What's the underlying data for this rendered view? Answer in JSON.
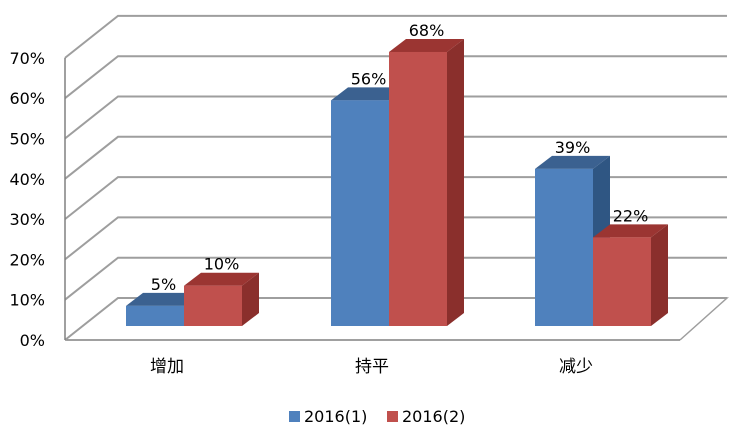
{
  "chart_data": {
    "type": "bar",
    "categories": [
      "增加",
      "持平",
      "减少"
    ],
    "series": [
      {
        "name": "2016(1)",
        "values": [
          5,
          56,
          39
        ],
        "labels": [
          "5%",
          "56%",
          "39%"
        ]
      },
      {
        "name": "2016(2)",
        "values": [
          10,
          68,
          22
        ],
        "labels": [
          "10%",
          "68%",
          "22%"
        ]
      }
    ],
    "ylim": [
      0,
      70
    ],
    "ytick_values": [
      0,
      10,
      20,
      30,
      40,
      50,
      60,
      70
    ],
    "ytick_labels": [
      "0%",
      "10%",
      "20%",
      "30%",
      "40%",
      "50%",
      "60%",
      "70%"
    ],
    "title": "",
    "xlabel": "",
    "ylabel": "",
    "grid": true,
    "style": "3d-clustered-column",
    "legend_position": "bottom"
  },
  "colors": {
    "series": [
      {
        "front": "#4f81bd",
        "top": "#3b6190",
        "side": "#2f5683"
      },
      {
        "front": "#c0504d",
        "top": "#9b3532",
        "side": "#8a2f2c"
      }
    ],
    "grid": "#9e9e9e",
    "axis": "#808080"
  }
}
